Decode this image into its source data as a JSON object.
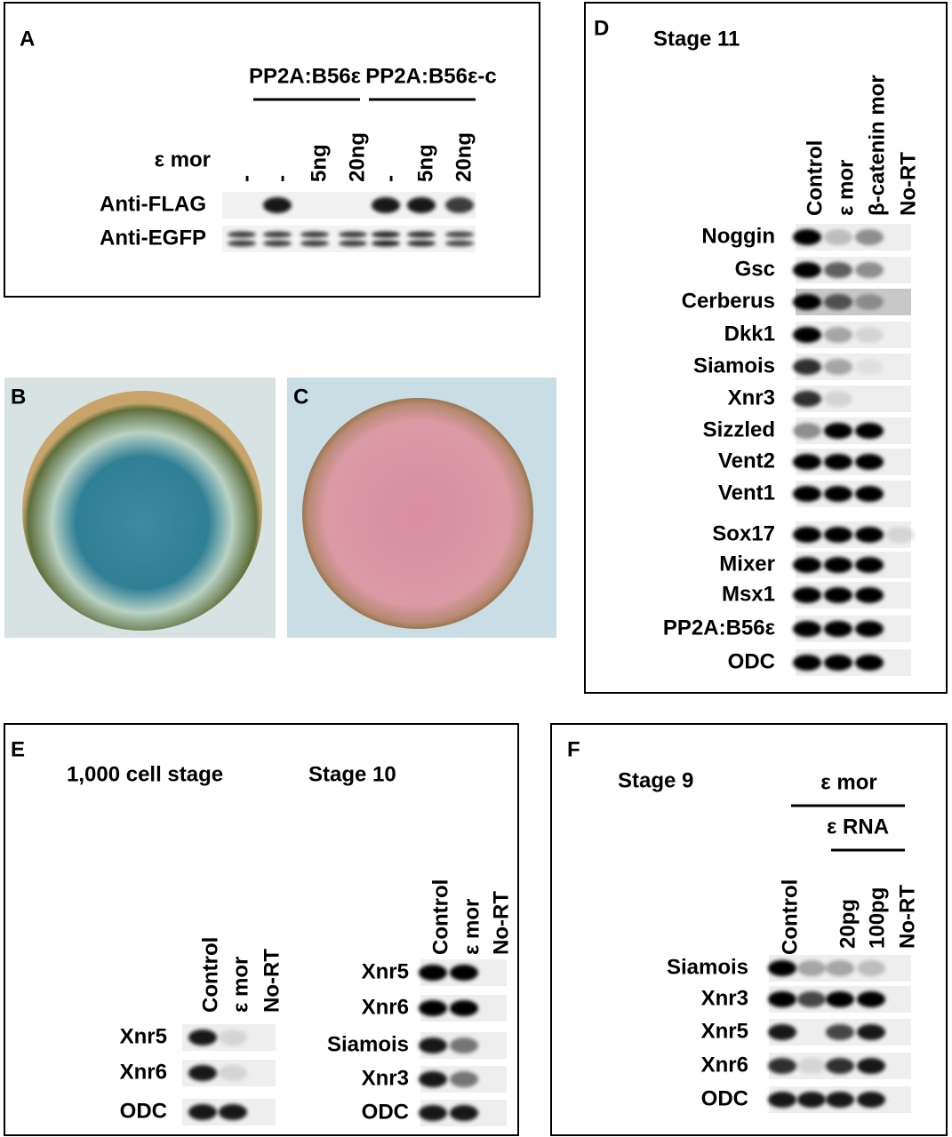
{
  "panels": {
    "A": {
      "label": "A",
      "groups": [
        "PP2A:B56ε",
        "PP2A:B56ε-c"
      ],
      "row_label": "ε mor",
      "lanes": [
        "-",
        "-",
        "5ng",
        "20ng",
        "-",
        "5ng",
        "20ng"
      ],
      "blots": [
        "Anti-FLAG",
        "Anti-EGFP"
      ]
    },
    "B": {
      "label": "B"
    },
    "C": {
      "label": "C"
    },
    "D": {
      "label": "D",
      "title": "Stage 11",
      "lanes": [
        "Control",
        "ε mor",
        "β-catenin mor",
        "No-RT"
      ],
      "genes": [
        "Noggin",
        "Gsc",
        "Cerberus",
        "Dkk1",
        "Siamois",
        "Xnr3",
        "Sizzled",
        "Vent2",
        "Vent1",
        "Sox17",
        "Mixer",
        "Msx1",
        "PP2A:B56ε",
        "ODC"
      ]
    },
    "E": {
      "label": "E",
      "stages": [
        {
          "title": "1,000 cell stage",
          "lanes": [
            "Control",
            "ε mor",
            "No-RT"
          ],
          "genes": [
            "Xnr5",
            "Xnr6",
            "ODC"
          ]
        },
        {
          "title": "Stage 10",
          "lanes": [
            "Control",
            "ε mor",
            "No-RT"
          ],
          "genes": [
            "Xnr5",
            "Xnr6",
            "Siamois",
            "Xnr3",
            "ODC"
          ]
        }
      ]
    },
    "F": {
      "label": "F",
      "title": "Stage 9",
      "group": "ε mor",
      "subgroup": "ε RNA",
      "lanes": [
        "Control",
        "20pg",
        "100pg",
        "No-RT"
      ],
      "genes": [
        "Siamois",
        "Xnr3",
        "Xnr5",
        "Xnr6",
        "ODC"
      ]
    }
  }
}
